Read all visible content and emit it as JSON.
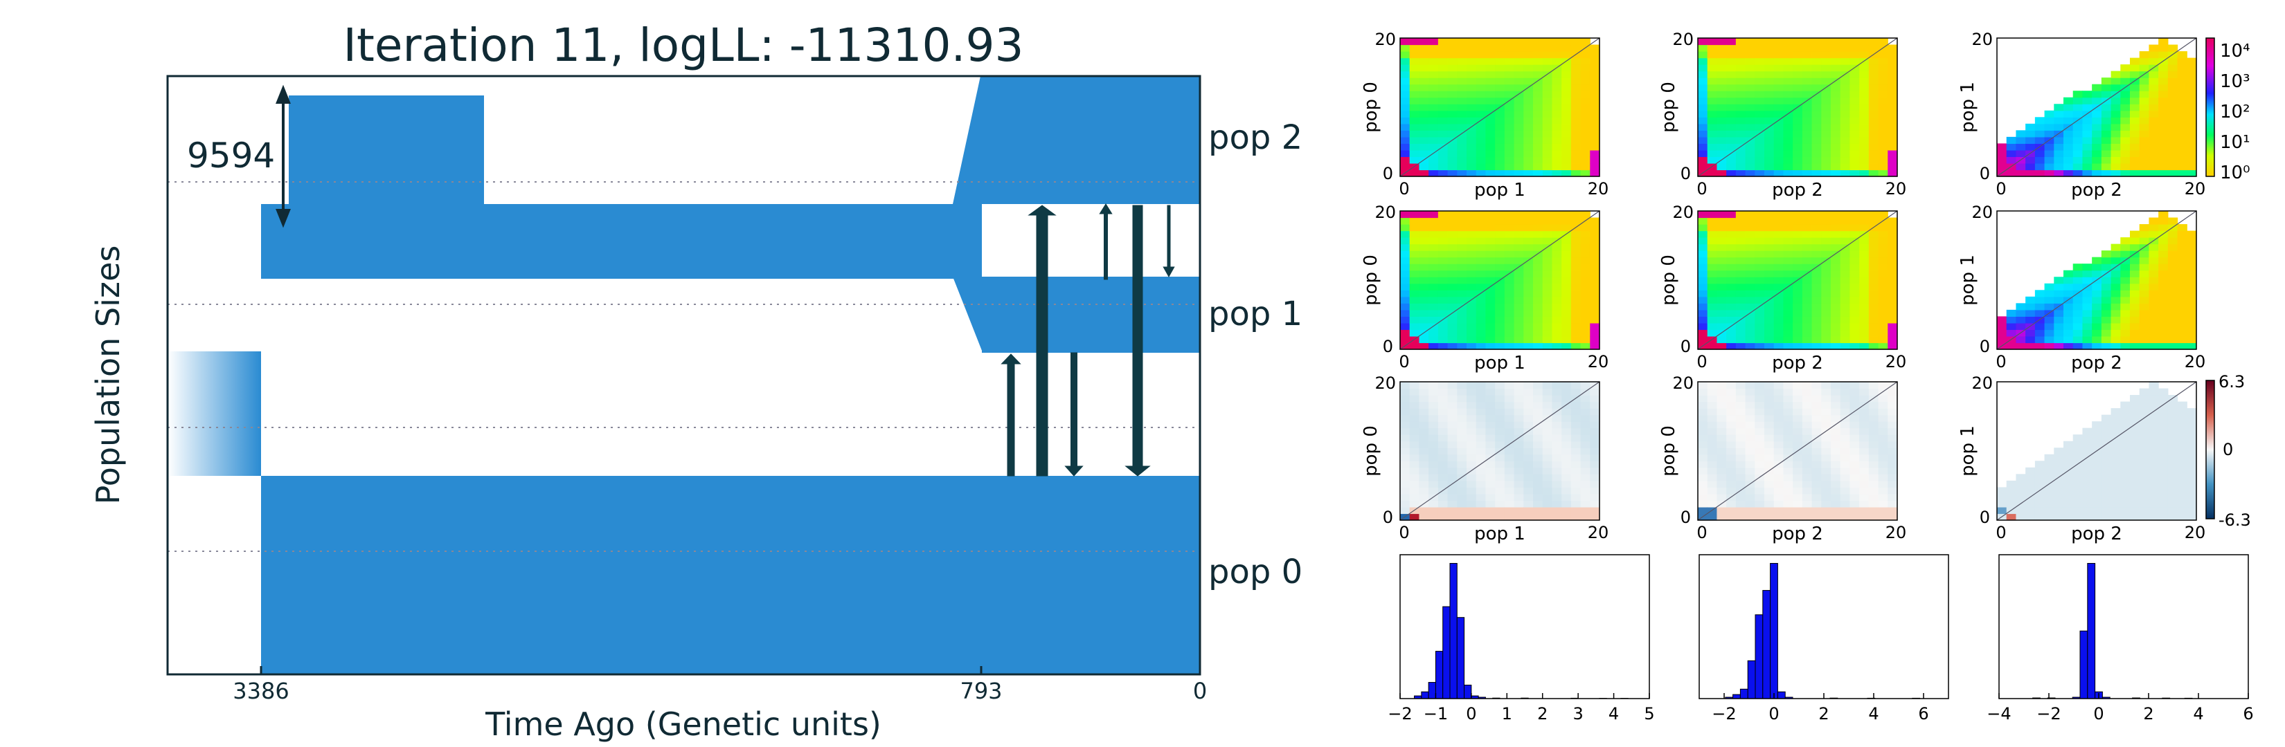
{
  "chart_data": [
    {
      "type": "area",
      "title": "Iteration 11, logLL:  -11310.93",
      "xlabel": "Time Ago (Genetic units)",
      "ylabel": "Population Sizes",
      "x_ticks": [
        3386,
        793,
        0
      ],
      "scale_annotation": "9594",
      "populations": [
        "pop 0",
        "pop 1",
        "pop 2"
      ],
      "colors": {
        "band": "#2a8bd2",
        "arrow": "#0f3a44",
        "frame": "#102a34",
        "title": "#102a34"
      }
    },
    {
      "type": "heatmap",
      "panels": [
        {
          "row": 0,
          "col": 0,
          "xlabel": "pop 1",
          "ylabel": "pop 0",
          "kind": "log_count",
          "slope": 1,
          "pattern": "fan"
        },
        {
          "row": 0,
          "col": 1,
          "xlabel": "pop 2",
          "ylabel": "pop 0",
          "kind": "log_count",
          "slope": 1,
          "pattern": "fan"
        },
        {
          "row": 0,
          "col": 2,
          "xlabel": "pop 2",
          "ylabel": "pop 1",
          "kind": "log_count",
          "slope": 1,
          "pattern": "tri"
        },
        {
          "row": 1,
          "col": 0,
          "xlabel": "pop 1",
          "ylabel": "pop 0",
          "kind": "log_count",
          "slope": 1,
          "pattern": "fan"
        },
        {
          "row": 1,
          "col": 1,
          "xlabel": "pop 2",
          "ylabel": "pop 0",
          "kind": "log_count",
          "slope": 1,
          "pattern": "fan"
        },
        {
          "row": 1,
          "col": 2,
          "xlabel": "pop 2",
          "ylabel": "pop 1",
          "kind": "log_count",
          "slope": 1,
          "pattern": "tri"
        },
        {
          "row": 2,
          "col": 0,
          "xlabel": "pop 1",
          "ylabel": "pop 0",
          "kind": "residual",
          "slope": 1,
          "pattern": "res"
        },
        {
          "row": 2,
          "col": 1,
          "xlabel": "pop 2",
          "ylabel": "pop 0",
          "kind": "residual",
          "slope": 1,
          "pattern": "res2"
        },
        {
          "row": 2,
          "col": 2,
          "xlabel": "pop 2",
          "ylabel": "pop 1",
          "kind": "residual",
          "slope": 1,
          "pattern": "res3"
        }
      ],
      "axis_ticks": [
        "0",
        "20"
      ],
      "colorbar_log": {
        "ticks": [
          "10⁴",
          "10³",
          "10²",
          "10¹",
          "10⁰"
        ]
      },
      "colorbar_residual": {
        "ticks": [
          "6.3",
          "0",
          "-6.3"
        ],
        "range": [
          -6.3,
          6.3
        ]
      }
    },
    {
      "type": "bar",
      "histograms": [
        {
          "xlim": [
            -2,
            5
          ],
          "x_ticks": [
            "−2",
            "−1",
            "0",
            "1",
            "2",
            "3",
            "4",
            "5"
          ],
          "bin_width": 0.2,
          "bins": [
            [
              -1.5,
              0.02
            ],
            [
              -1.3,
              0.05
            ],
            [
              -1.1,
              0.12
            ],
            [
              -0.9,
              0.35
            ],
            [
              -0.7,
              0.68
            ],
            [
              -0.5,
              1.0
            ],
            [
              -0.3,
              0.6
            ],
            [
              -0.1,
              0.1
            ],
            [
              0.1,
              0.02
            ],
            [
              0.3,
              0.01
            ],
            [
              0.7,
              0.004
            ],
            [
              1.5,
              0.004
            ],
            [
              2.9,
              0.003
            ],
            [
              3.7,
              0.002
            ],
            [
              4.3,
              0.002
            ]
          ]
        },
        {
          "xlim": [
            -3,
            7
          ],
          "x_ticks": [
            "−2",
            "0",
            "2",
            "4",
            "6"
          ],
          "bin_width": 0.3,
          "bins": [
            [
              -1.8,
              0.01
            ],
            [
              -1.5,
              0.03
            ],
            [
              -1.2,
              0.07
            ],
            [
              -0.9,
              0.28
            ],
            [
              -0.6,
              0.62
            ],
            [
              -0.3,
              0.8
            ],
            [
              0.0,
              1.0
            ],
            [
              0.3,
              0.05
            ],
            [
              0.6,
              0.01
            ],
            [
              2.4,
              0.004
            ],
            [
              3.9,
              0.003
            ],
            [
              5.7,
              0.003
            ]
          ]
        },
        {
          "xlim": [
            -4,
            6
          ],
          "x_ticks": [
            "−4",
            "−2",
            "0",
            "2",
            "4",
            "6"
          ],
          "bin_width": 0.3,
          "bins": [
            [
              -2.5,
              0.005
            ],
            [
              -1.9,
              0.005
            ],
            [
              -0.9,
              0.01
            ],
            [
              -0.6,
              0.5
            ],
            [
              -0.3,
              1.0
            ],
            [
              0.0,
              0.05
            ],
            [
              0.3,
              0.01
            ],
            [
              1.5,
              0.005
            ],
            [
              2.7,
              0.004
            ],
            [
              3.6,
              0.003
            ]
          ]
        }
      ],
      "color": "#0a10ee"
    }
  ]
}
